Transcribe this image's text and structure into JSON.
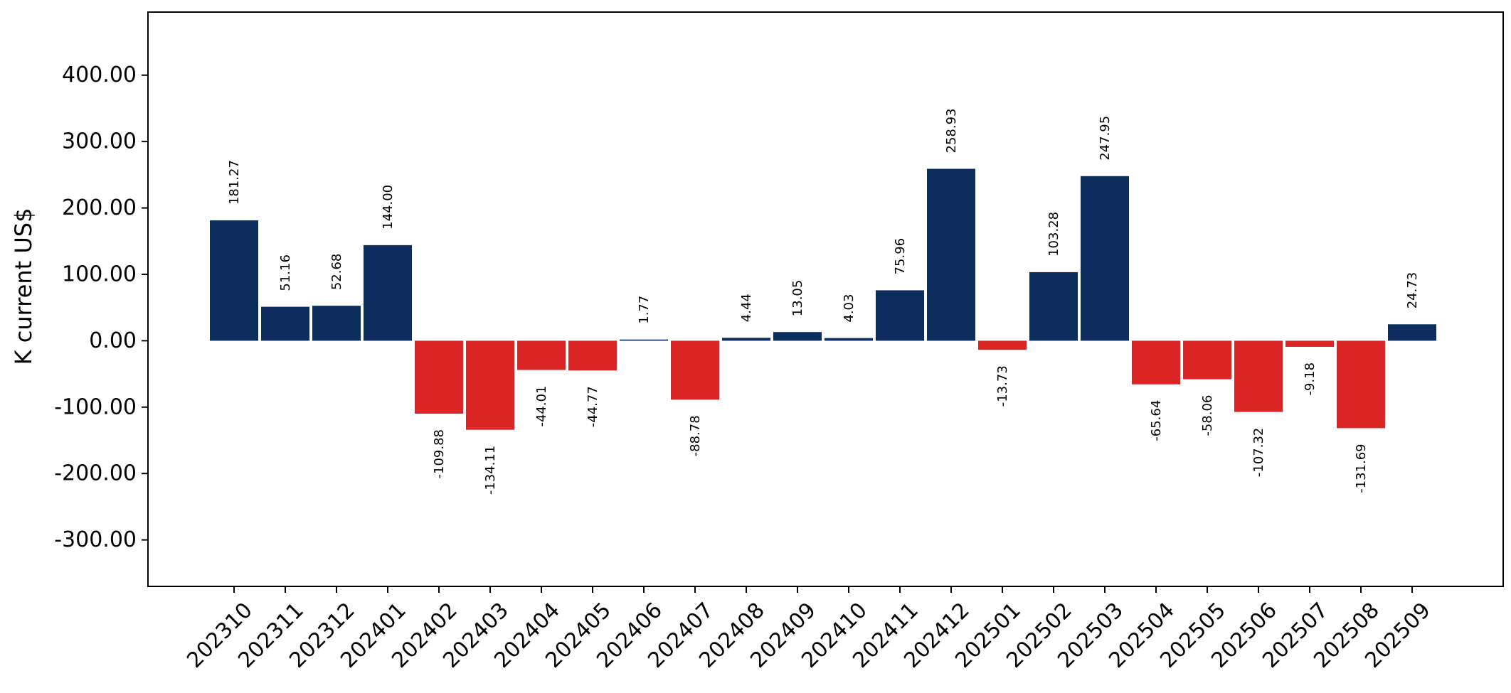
{
  "chart_data": {
    "type": "bar",
    "title": "",
    "xlabel": "",
    "ylabel": "K current US$",
    "ylim": [
      -370,
      495
    ],
    "yticks": [
      -300,
      -200,
      -100,
      0,
      100,
      200,
      300,
      400
    ],
    "ytick_labels": [
      "-300.00",
      "-200.00",
      "-100.00",
      "0.00",
      "100.00",
      "200.00",
      "300.00",
      "400.00"
    ],
    "grid": false,
    "legend": "none",
    "colors": {
      "positive": "#0d2d5c",
      "negative": "#dc2626"
    },
    "categories": [
      "202310",
      "202311",
      "202312",
      "202401",
      "202402",
      "202403",
      "202404",
      "202405",
      "202406",
      "202407",
      "202408",
      "202409",
      "202410",
      "202411",
      "202412",
      "202501",
      "202502",
      "202503",
      "202504",
      "202505",
      "202506",
      "202507",
      "202508",
      "202509"
    ],
    "values": [
      181.27,
      51.16,
      52.68,
      144.0,
      -109.88,
      -134.11,
      -44.01,
      -44.77,
      1.77,
      -88.78,
      4.44,
      13.05,
      4.03,
      75.96,
      258.93,
      -13.73,
      103.28,
      247.95,
      -65.64,
      -58.06,
      -107.32,
      -9.18,
      -131.69,
      24.73
    ],
    "value_labels": [
      "181.27",
      "51.16",
      "52.68",
      "144.00",
      "-109.88",
      "-134.11",
      "-44.01",
      "-44.77",
      "1.77",
      "-88.78",
      "4.44",
      "13.05",
      "4.03",
      "75.96",
      "258.93",
      "-13.73",
      "103.28",
      "247.95",
      "-65.64",
      "-58.06",
      "-107.32",
      "-9.18",
      "-131.69",
      "24.73"
    ]
  }
}
